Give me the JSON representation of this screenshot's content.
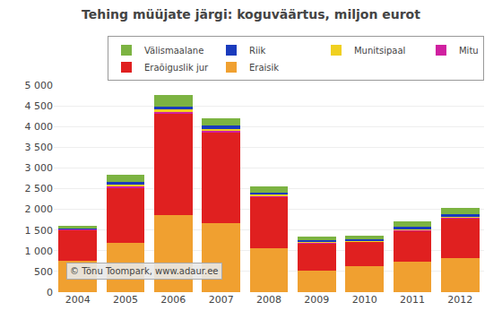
{
  "chart_data": {
    "type": "bar",
    "stacked": true,
    "title": "Tehing müüjate järgi: koguväärtus, miljon eurot",
    "categories": [
      "2004",
      "2005",
      "2006",
      "2007",
      "2008",
      "2009",
      "2010",
      "2011",
      "2012"
    ],
    "series": [
      {
        "name": "Eraisik",
        "color": "#f0a030",
        "values": [
          750,
          1200,
          1870,
          1660,
          1050,
          510,
          630,
          730,
          820
        ]
      },
      {
        "name": "Eraõiguslik jur",
        "color": "#e02020",
        "values": [
          760,
          1330,
          2440,
          2210,
          1260,
          680,
          590,
          760,
          960
        ]
      },
      {
        "name": "Mitu",
        "color": "#d020a0",
        "values": [
          10,
          25,
          30,
          25,
          15,
          10,
          10,
          15,
          20
        ]
      },
      {
        "name": "Munitsipaal",
        "color": "#f0d020",
        "values": [
          10,
          40,
          70,
          55,
          30,
          15,
          15,
          20,
          25
        ]
      },
      {
        "name": "Riik",
        "color": "#1a3bbd",
        "values": [
          15,
          60,
          80,
          70,
          50,
          30,
          30,
          50,
          60
        ]
      },
      {
        "name": "Välismaalane",
        "color": "#7cb342",
        "values": [
          60,
          170,
          270,
          190,
          160,
          90,
          80,
          130,
          155
        ]
      }
    ],
    "ylim": [
      0,
      5000
    ],
    "yticks": [
      0,
      500,
      {
        "value": 1000,
        "label": "1 000"
      },
      {
        "value": 1500,
        "label": "1 500"
      },
      {
        "value": 2000,
        "label": "2 000"
      },
      {
        "value": 2500,
        "label": "2 500"
      },
      {
        "value": 3000,
        "label": "3 000"
      },
      {
        "value": 3500,
        "label": "3 500"
      },
      {
        "value": 4000,
        "label": "4 000"
      },
      {
        "value": 4500,
        "label": "4 500"
      },
      {
        "value": 5000,
        "label": "5 000"
      }
    ],
    "grid": true,
    "legend": "upper right",
    "annotations": [
      "© Tõnu Toompark, www.adaur.ee"
    ]
  }
}
